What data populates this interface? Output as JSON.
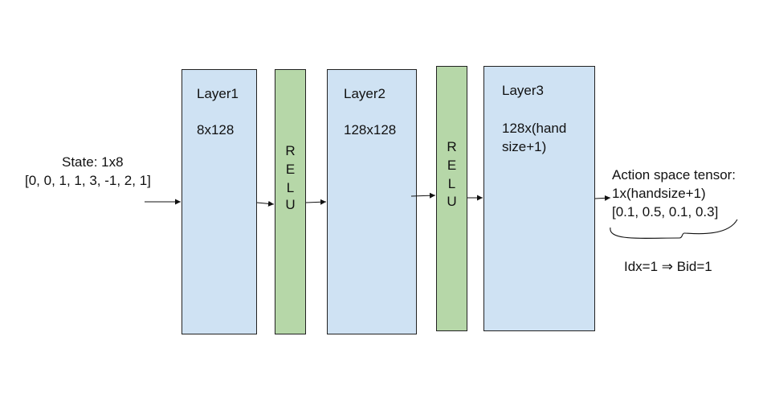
{
  "input": {
    "title": "State: 1x8",
    "vector": "[0, 0, 1, 1, 3, -1, 2, 1]"
  },
  "layers": [
    {
      "name": "Layer1",
      "shape": "8x128"
    },
    {
      "name": "Layer2",
      "shape": "128x128"
    },
    {
      "name": "Layer3",
      "shape_line1": "128x(hand",
      "shape_line2": "size+1)"
    }
  ],
  "activations": [
    {
      "letters": [
        "R",
        "E",
        "L",
        "U"
      ]
    },
    {
      "letters": [
        "R",
        "E",
        "L",
        "U"
      ]
    }
  ],
  "output": {
    "title": "Action space tensor:",
    "shape": "1x(handsize+1)",
    "vector": "[0.1, 0.5, 0.1, 0.3]",
    "result": "Idx=1 ⇒ Bid=1"
  },
  "colors": {
    "layer_fill": "#cfe2f3",
    "relu_fill": "#b6d7a8",
    "stroke": "#222222"
  }
}
